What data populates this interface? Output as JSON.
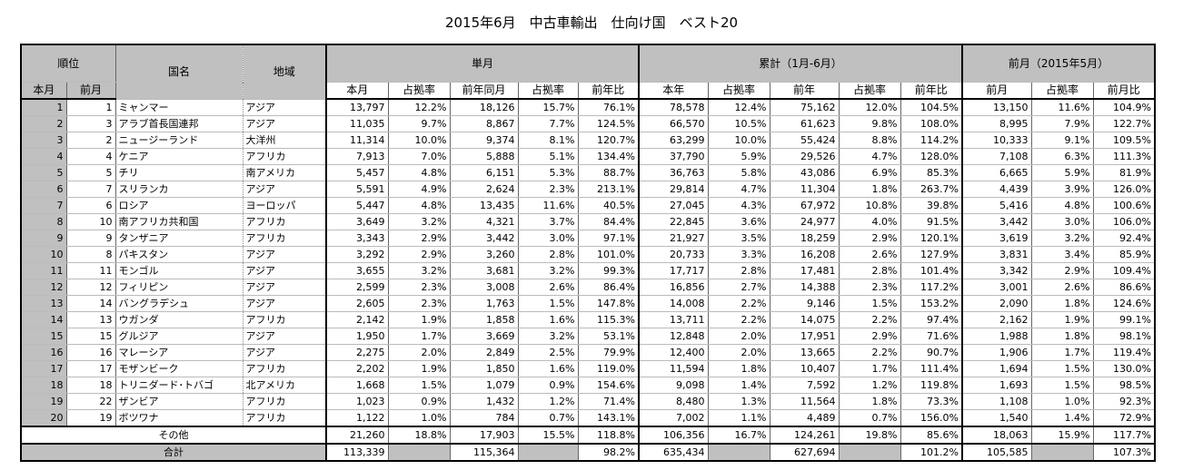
{
  "title": "2015年6月　中古車輸出　仕向け国　ベスト20",
  "headers": {
    "rank": "順位",
    "country": "国名",
    "region": "地域",
    "single": "単月",
    "cumulative": "累計（1月-6月）",
    "prev_month": "前月（2015年5月）",
    "sub": [
      "本月",
      "前月",
      "本月",
      "占拠率",
      "前年同月",
      "占拠率",
      "前年比",
      "本年",
      "占拠率",
      "前年",
      "占拠率",
      "前年比",
      "前月",
      "占拠率",
      "前月比"
    ]
  },
  "rows": [
    {
      "rank": "1",
      "prev": "1",
      "country": "ミャンマー",
      "region": "アジア",
      "m": "13,797",
      "ms": "12.2%",
      "py": "18,126",
      "pys": "15.7%",
      "yoy": "76.1%",
      "c": "78,578",
      "cs": "12.4%",
      "cpy": "75,162",
      "cpys": "12.0%",
      "cyoy": "104.5%",
      "pm": "13,150",
      "pms": "11.6%",
      "mom": "104.9%"
    },
    {
      "rank": "2",
      "prev": "3",
      "country": "アラブ首長国連邦",
      "region": "アジア",
      "m": "11,035",
      "ms": "9.7%",
      "py": "8,867",
      "pys": "7.7%",
      "yoy": "124.5%",
      "c": "66,570",
      "cs": "10.5%",
      "cpy": "61,623",
      "cpys": "9.8%",
      "cyoy": "108.0%",
      "pm": "8,995",
      "pms": "7.9%",
      "mom": "122.7%"
    },
    {
      "rank": "3",
      "prev": "2",
      "country": "ニュージーランド",
      "region": "大洋州",
      "m": "11,314",
      "ms": "10.0%",
      "py": "9,374",
      "pys": "8.1%",
      "yoy": "120.7%",
      "c": "63,299",
      "cs": "10.0%",
      "cpy": "55,424",
      "cpys": "8.8%",
      "cyoy": "114.2%",
      "pm": "10,333",
      "pms": "9.1%",
      "mom": "109.5%"
    },
    {
      "rank": "4",
      "prev": "4",
      "country": "ケニア",
      "region": "アフリカ",
      "m": "7,913",
      "ms": "7.0%",
      "py": "5,888",
      "pys": "5.1%",
      "yoy": "134.4%",
      "c": "37,790",
      "cs": "5.9%",
      "cpy": "29,526",
      "cpys": "4.7%",
      "cyoy": "128.0%",
      "pm": "7,108",
      "pms": "6.3%",
      "mom": "111.3%"
    },
    {
      "rank": "5",
      "prev": "5",
      "country": "チリ",
      "region": "南アメリカ",
      "m": "5,457",
      "ms": "4.8%",
      "py": "6,151",
      "pys": "5.3%",
      "yoy": "88.7%",
      "c": "36,763",
      "cs": "5.8%",
      "cpy": "43,086",
      "cpys": "6.9%",
      "cyoy": "85.3%",
      "pm": "6,665",
      "pms": "5.9%",
      "mom": "81.9%"
    },
    {
      "rank": "6",
      "prev": "7",
      "country": "スリランカ",
      "region": "アジア",
      "m": "5,591",
      "ms": "4.9%",
      "py": "2,624",
      "pys": "2.3%",
      "yoy": "213.1%",
      "c": "29,814",
      "cs": "4.7%",
      "cpy": "11,304",
      "cpys": "1.8%",
      "cyoy": "263.7%",
      "pm": "4,439",
      "pms": "3.9%",
      "mom": "126.0%"
    },
    {
      "rank": "7",
      "prev": "6",
      "country": "ロシア",
      "region": "ヨーロッパ",
      "m": "5,447",
      "ms": "4.8%",
      "py": "13,435",
      "pys": "11.6%",
      "yoy": "40.5%",
      "c": "27,045",
      "cs": "4.3%",
      "cpy": "67,972",
      "cpys": "10.8%",
      "cyoy": "39.8%",
      "pm": "5,416",
      "pms": "4.8%",
      "mom": "100.6%"
    },
    {
      "rank": "8",
      "prev": "10",
      "country": "南アフリカ共和国",
      "region": "アフリカ",
      "m": "3,649",
      "ms": "3.2%",
      "py": "4,321",
      "pys": "3.7%",
      "yoy": "84.4%",
      "c": "22,845",
      "cs": "3.6%",
      "cpy": "24,977",
      "cpys": "4.0%",
      "cyoy": "91.5%",
      "pm": "3,442",
      "pms": "3.0%",
      "mom": "106.0%"
    },
    {
      "rank": "9",
      "prev": "9",
      "country": "タンザニア",
      "region": "アフリカ",
      "m": "3,343",
      "ms": "2.9%",
      "py": "3,442",
      "pys": "3.0%",
      "yoy": "97.1%",
      "c": "21,927",
      "cs": "3.5%",
      "cpy": "18,259",
      "cpys": "2.9%",
      "cyoy": "120.1%",
      "pm": "3,619",
      "pms": "3.2%",
      "mom": "92.4%"
    },
    {
      "rank": "10",
      "prev": "8",
      "country": "パキスタン",
      "region": "アジア",
      "m": "3,292",
      "ms": "2.9%",
      "py": "3,260",
      "pys": "2.8%",
      "yoy": "101.0%",
      "c": "20,733",
      "cs": "3.3%",
      "cpy": "16,208",
      "cpys": "2.6%",
      "cyoy": "127.9%",
      "pm": "3,831",
      "pms": "3.4%",
      "mom": "85.9%"
    },
    {
      "rank": "11",
      "prev": "11",
      "country": "モンゴル",
      "region": "アジア",
      "m": "3,655",
      "ms": "3.2%",
      "py": "3,681",
      "pys": "3.2%",
      "yoy": "99.3%",
      "c": "17,717",
      "cs": "2.8%",
      "cpy": "17,481",
      "cpys": "2.8%",
      "cyoy": "101.4%",
      "pm": "3,342",
      "pms": "2.9%",
      "mom": "109.4%"
    },
    {
      "rank": "12",
      "prev": "12",
      "country": "フィリピン",
      "region": "アジア",
      "m": "2,599",
      "ms": "2.3%",
      "py": "3,008",
      "pys": "2.6%",
      "yoy": "86.4%",
      "c": "16,856",
      "cs": "2.7%",
      "cpy": "14,388",
      "cpys": "2.3%",
      "cyoy": "117.2%",
      "pm": "3,001",
      "pms": "2.6%",
      "mom": "86.6%"
    },
    {
      "rank": "13",
      "prev": "14",
      "country": "バングラデシュ",
      "region": "アジア",
      "m": "2,605",
      "ms": "2.3%",
      "py": "1,763",
      "pys": "1.5%",
      "yoy": "147.8%",
      "c": "14,008",
      "cs": "2.2%",
      "cpy": "9,146",
      "cpys": "1.5%",
      "cyoy": "153.2%",
      "pm": "2,090",
      "pms": "1.8%",
      "mom": "124.6%"
    },
    {
      "rank": "14",
      "prev": "13",
      "country": "ウガンダ",
      "region": "アフリカ",
      "m": "2,142",
      "ms": "1.9%",
      "py": "1,858",
      "pys": "1.6%",
      "yoy": "115.3%",
      "c": "13,711",
      "cs": "2.2%",
      "cpy": "14,075",
      "cpys": "2.2%",
      "cyoy": "97.4%",
      "pm": "2,162",
      "pms": "1.9%",
      "mom": "99.1%"
    },
    {
      "rank": "15",
      "prev": "15",
      "country": "グルジア",
      "region": "アジア",
      "m": "1,950",
      "ms": "1.7%",
      "py": "3,669",
      "pys": "3.2%",
      "yoy": "53.1%",
      "c": "12,848",
      "cs": "2.0%",
      "cpy": "17,951",
      "cpys": "2.9%",
      "cyoy": "71.6%",
      "pm": "1,988",
      "pms": "1.8%",
      "mom": "98.1%"
    },
    {
      "rank": "16",
      "prev": "16",
      "country": "マレーシア",
      "region": "アジア",
      "m": "2,275",
      "ms": "2.0%",
      "py": "2,849",
      "pys": "2.5%",
      "yoy": "79.9%",
      "c": "12,400",
      "cs": "2.0%",
      "cpy": "13,665",
      "cpys": "2.2%",
      "cyoy": "90.7%",
      "pm": "1,906",
      "pms": "1.7%",
      "mom": "119.4%"
    },
    {
      "rank": "17",
      "prev": "17",
      "country": "モザンビーク",
      "region": "アフリカ",
      "m": "2,202",
      "ms": "1.9%",
      "py": "1,850",
      "pys": "1.6%",
      "yoy": "119.0%",
      "c": "11,594",
      "cs": "1.8%",
      "cpy": "10,407",
      "cpys": "1.7%",
      "cyoy": "111.4%",
      "pm": "1,694",
      "pms": "1.5%",
      "mom": "130.0%"
    },
    {
      "rank": "18",
      "prev": "18",
      "country": "トリニダード･トバゴ",
      "region": "北アメリカ",
      "m": "1,668",
      "ms": "1.5%",
      "py": "1,079",
      "pys": "0.9%",
      "yoy": "154.6%",
      "c": "9,098",
      "cs": "1.4%",
      "cpy": "7,592",
      "cpys": "1.2%",
      "cyoy": "119.8%",
      "pm": "1,693",
      "pms": "1.5%",
      "mom": "98.5%"
    },
    {
      "rank": "19",
      "prev": "22",
      "country": "ザンビア",
      "region": "アフリカ",
      "m": "1,023",
      "ms": "0.9%",
      "py": "1,432",
      "pys": "1.2%",
      "yoy": "71.4%",
      "c": "8,480",
      "cs": "1.3%",
      "cpy": "11,564",
      "cpys": "1.8%",
      "cyoy": "73.3%",
      "pm": "1,108",
      "pms": "1.0%",
      "mom": "92.3%"
    },
    {
      "rank": "20",
      "prev": "19",
      "country": "ボツワナ",
      "region": "アフリカ",
      "m": "1,122",
      "ms": "1.0%",
      "py": "784",
      "pys": "0.7%",
      "yoy": "143.1%",
      "c": "7,002",
      "cs": "1.1%",
      "cpy": "4,489",
      "cpys": "0.7%",
      "cyoy": "156.0%",
      "pm": "1,540",
      "pms": "1.4%",
      "mom": "72.9%"
    }
  ],
  "other": {
    "label": "その他",
    "m": "21,260",
    "ms": "18.8%",
    "py": "17,903",
    "pys": "15.5%",
    "yoy": "118.8%",
    "c": "106,356",
    "cs": "16.7%",
    "cpy": "124,261",
    "cpys": "19.8%",
    "cyoy": "85.6%",
    "pm": "18,063",
    "pms": "15.9%",
    "mom": "117.7%"
  },
  "total": {
    "label": "合計",
    "m": "113,339",
    "py": "115,364",
    "yoy": "98.2%",
    "c": "635,434",
    "cpy": "627,694",
    "cyoy": "101.2%",
    "pm": "105,585",
    "mom": "107.3%"
  }
}
